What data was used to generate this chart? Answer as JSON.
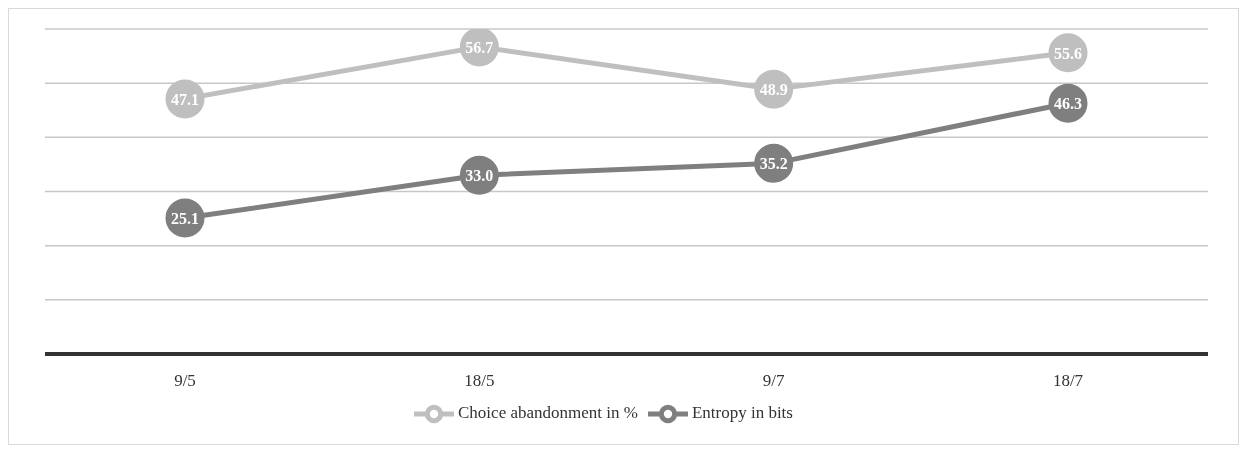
{
  "chart_data": {
    "type": "line",
    "categories": [
      "9/5",
      "18/5",
      "9/7",
      "18/7"
    ],
    "series": [
      {
        "name": "Entropy in bits",
        "color": "#7f7f7f",
        "values": [
          25.1,
          33.0,
          35.2,
          46.3
        ],
        "value_labels": [
          "25.1",
          "33.0",
          "35.2",
          "46.3"
        ]
      },
      {
        "name": "Choice abandonment in %",
        "color": "#bfbfbf",
        "values": [
          47.1,
          56.7,
          48.9,
          55.6
        ],
        "value_labels": [
          "47.1",
          "56.7",
          "48.9",
          "55.6"
        ]
      }
    ],
    "ylim": [
      0,
      60
    ],
    "yticks": [
      {
        "value": 0,
        "label": null
      },
      {
        "value": 10,
        "label": null
      },
      {
        "value": 20,
        "label": null
      },
      {
        "value": 30,
        "label": null
      },
      {
        "value": 40,
        "label": null
      },
      {
        "value": 50,
        "label": null
      },
      {
        "value": 60,
        "label": null
      }
    ],
    "tick_labels": "x",
    "grid": "y",
    "legend": "bottom",
    "marker": "circle"
  }
}
